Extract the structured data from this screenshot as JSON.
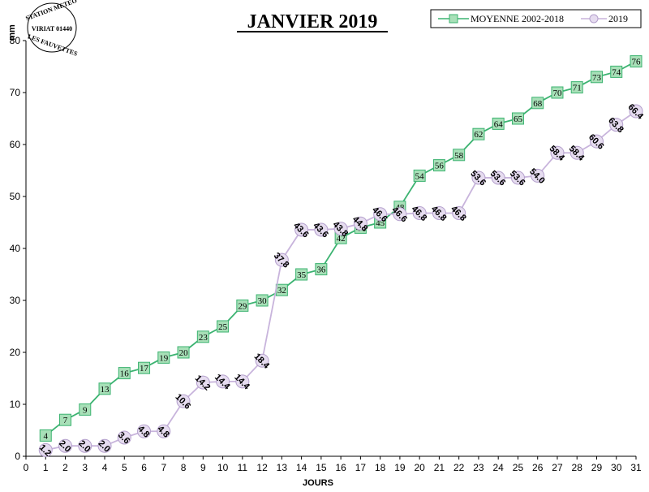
{
  "stamp": {
    "line1": "STATION METEO",
    "line2": "VIRIAT 01440",
    "line3": "LES FAUVETTES"
  },
  "chart_data": {
    "type": "line",
    "title": "JANVIER 2019",
    "xlabel": "JOURS",
    "ylabel": "mm",
    "xlim": [
      0,
      31
    ],
    "ylim": [
      0,
      80
    ],
    "xticks": [
      0,
      1,
      2,
      3,
      4,
      5,
      6,
      7,
      8,
      9,
      10,
      11,
      12,
      13,
      14,
      15,
      16,
      17,
      18,
      19,
      20,
      21,
      22,
      23,
      24,
      25,
      26,
      27,
      28,
      29,
      30,
      31
    ],
    "yticks": [
      0,
      10,
      20,
      30,
      40,
      50,
      60,
      70,
      80
    ],
    "legend_position": "top-right",
    "grid": false,
    "x": [
      1,
      2,
      3,
      4,
      5,
      6,
      7,
      8,
      9,
      10,
      11,
      12,
      13,
      14,
      15,
      16,
      17,
      18,
      19,
      20,
      21,
      22,
      23,
      24,
      25,
      26,
      27,
      28,
      29,
      30,
      31
    ],
    "series": [
      {
        "name": "MOYENNE 2002-2018",
        "color": "#3cb371",
        "marker": "square",
        "values": [
          4,
          7,
          9,
          13,
          16,
          17,
          19,
          20,
          23,
          25,
          29,
          30,
          32,
          35,
          36,
          42,
          44,
          45,
          48,
          54,
          56,
          58,
          62,
          64,
          65,
          68,
          70,
          71,
          73,
          74,
          76
        ],
        "labels": [
          "4",
          "7",
          "9",
          "13",
          "16",
          "17",
          "19",
          "20",
          "23",
          "25",
          "29",
          "30",
          "32",
          "35",
          "36",
          "42",
          "44",
          "45",
          "48",
          "54",
          "56",
          "58",
          "62",
          "64",
          "65",
          "68",
          "70",
          "71",
          "73",
          "74",
          "76"
        ]
      },
      {
        "name": "2019",
        "color": "#c8b4dc",
        "marker": "circle",
        "values": [
          1.2,
          2.0,
          2.0,
          2.0,
          3.6,
          4.8,
          4.8,
          10.6,
          14.2,
          14.4,
          14.4,
          18.4,
          37.8,
          43.6,
          43.6,
          43.8,
          44.8,
          46.6,
          46.6,
          46.8,
          46.8,
          46.8,
          53.6,
          53.6,
          53.6,
          54.0,
          58.4,
          58.4,
          60.6,
          63.8,
          66.4
        ],
        "labels": [
          "1.2",
          "2.0",
          "2.0",
          "2.0",
          "3.6",
          "4.8",
          "4.8",
          "10.6",
          "14.2",
          "14.4",
          "14.4",
          "18.4",
          "37.8",
          "43.6",
          "43.6",
          "43.8",
          "44.8",
          "46.6",
          "46.6",
          "46.8",
          "46.8",
          "46.8",
          "53.6",
          "53.6",
          "53.6",
          "54.0",
          "58.4",
          "58.4",
          "60.6",
          "63.8",
          "66.4"
        ]
      }
    ]
  }
}
